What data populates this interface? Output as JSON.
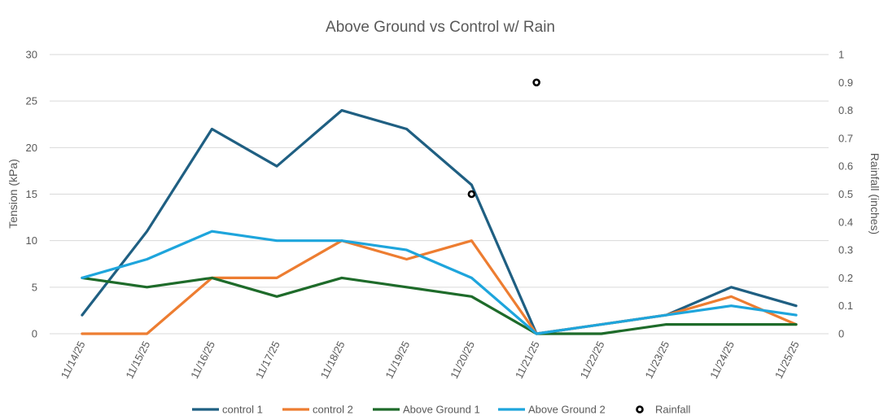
{
  "chart_data": {
    "type": "line",
    "title": "Above Ground vs Control w/ Rain",
    "xlabel": "",
    "ylabel": "Tension (kPa)",
    "y2label": "Rainfall (inches)",
    "categories": [
      "11/14/25",
      "11/15/25",
      "11/16/25",
      "11/17/25",
      "11/18/25",
      "11/19/25",
      "11/20/25",
      "11/21/25",
      "11/22/25",
      "11/23/25",
      "11/24/25",
      "11/25/25"
    ],
    "ylim": [
      0,
      30
    ],
    "yticks": [
      0,
      5,
      10,
      15,
      20,
      25,
      30
    ],
    "y2lim": [
      0,
      1
    ],
    "y2ticks": [
      "0",
      "0.1",
      "0.2",
      "0.3",
      "0.4",
      "0.5",
      "0.6",
      "0.7",
      "0.8",
      "0.9",
      "1"
    ],
    "grid": true,
    "legend_position": "bottom",
    "series": [
      {
        "name": "control 1",
        "color": "#1f5f82",
        "axis": "left",
        "values": [
          2,
          11,
          22,
          18,
          24,
          22,
          16,
          0,
          1,
          2,
          5,
          3
        ]
      },
      {
        "name": "control 2",
        "color": "#ed7d31",
        "axis": "left",
        "values": [
          0,
          0,
          6,
          6,
          10,
          8,
          10,
          0,
          1,
          2,
          4,
          1
        ]
      },
      {
        "name": "Above Ground 1",
        "color": "#1e6b2a",
        "axis": "left",
        "values": [
          6,
          5,
          6,
          4,
          6,
          5,
          4,
          0,
          0,
          1,
          1,
          1
        ]
      },
      {
        "name": "Above Ground 2",
        "color": "#1ea5dc",
        "axis": "left",
        "values": [
          6,
          8,
          11,
          10,
          10,
          9,
          6,
          0,
          1,
          2,
          3,
          2
        ]
      }
    ],
    "rainfall": {
      "name": "Rainfall",
      "type": "scatter",
      "axis": "right",
      "color": "#000000",
      "points": [
        {
          "x": "11/20/25",
          "y": 0.5
        },
        {
          "x": "11/21/25",
          "y": 0.9
        }
      ]
    }
  }
}
